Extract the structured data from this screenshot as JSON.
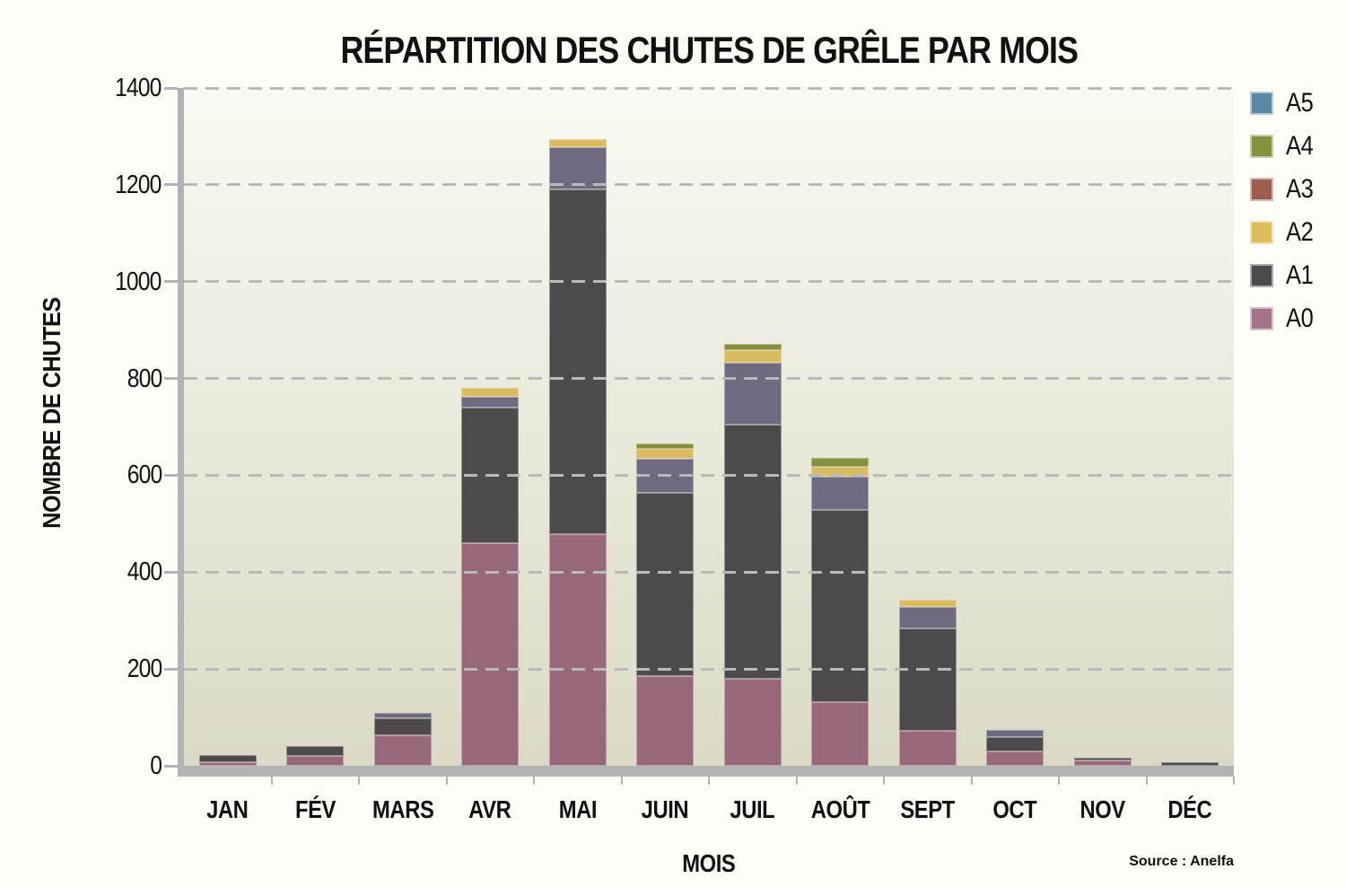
{
  "title": "RÉPARTITION DES CHUTES DE GRÊLE PAR MOIS",
  "y_axis": {
    "title": "NOMBRE DE CHUTES",
    "ticks": [
      0,
      200,
      400,
      600,
      800,
      1000,
      1200,
      1400
    ]
  },
  "x_axis": {
    "title": "MOIS"
  },
  "source": "Source : Anelfa",
  "legend": {
    "position": "right",
    "items": [
      {
        "label": "A5",
        "color": "#5a87a3"
      },
      {
        "label": "A4",
        "color": "#87913d"
      },
      {
        "label": "A3",
        "color": "#9e5c4e"
      },
      {
        "label": "A2",
        "color": "#dcbd5e"
      },
      {
        "label": "A1",
        "color": "#4d4a4b"
      },
      {
        "label": "A0",
        "color": "#a5748a"
      }
    ]
  },
  "chart_data": {
    "type": "bar",
    "stacked": true,
    "title": "RÉPARTITION DES CHUTES DE GRÊLE PAR MOIS",
    "xlabel": "MOIS",
    "ylabel": "NOMBRE DE CHUTES",
    "ylim": [
      0,
      1400
    ],
    "grid": "horizontal-dashed",
    "legend_position": "right",
    "categories": [
      "JAN",
      "FÉV",
      "MARS",
      "AVR",
      "MAI",
      "JUIN",
      "JUIL",
      "AOÛT",
      "SEPT",
      "OCT",
      "NOV",
      "DÉC"
    ],
    "series": [
      {
        "name": "A0",
        "color": "#96687a",
        "values": [
          8,
          20,
          64,
          460,
          478,
          185,
          180,
          132,
          72,
          29,
          12,
          0
        ]
      },
      {
        "name": "A1",
        "color": "#4d4a4b",
        "values": [
          14,
          20,
          34,
          280,
          712,
          378,
          525,
          397,
          212,
          30,
          4,
          8
        ]
      },
      {
        "name": "A2",
        "color": "#6f6a80",
        "values": [
          0,
          0,
          11,
          22,
          87,
          71,
          128,
          68,
          45,
          15,
          0,
          0
        ]
      },
      {
        "name": "A3",
        "color": "#d9bc60",
        "values": [
          0,
          0,
          0,
          19,
          18,
          20,
          25,
          20,
          14,
          0,
          0,
          0
        ]
      },
      {
        "name": "A4",
        "color": "#87913d",
        "values": [
          0,
          0,
          0,
          0,
          0,
          11,
          14,
          19,
          0,
          0,
          0,
          0
        ]
      },
      {
        "name": "A5",
        "color": "#5a87a3",
        "values": [
          0,
          0,
          0,
          0,
          0,
          0,
          0,
          0,
          0,
          0,
          0,
          0
        ]
      }
    ]
  },
  "colors": {
    "axis": "#b3b3b3",
    "grid": "#bbbbbb",
    "plot_bg_top": "#faf9f3",
    "plot_bg_bottom": "#dbd9c6",
    "text": "#111111"
  }
}
